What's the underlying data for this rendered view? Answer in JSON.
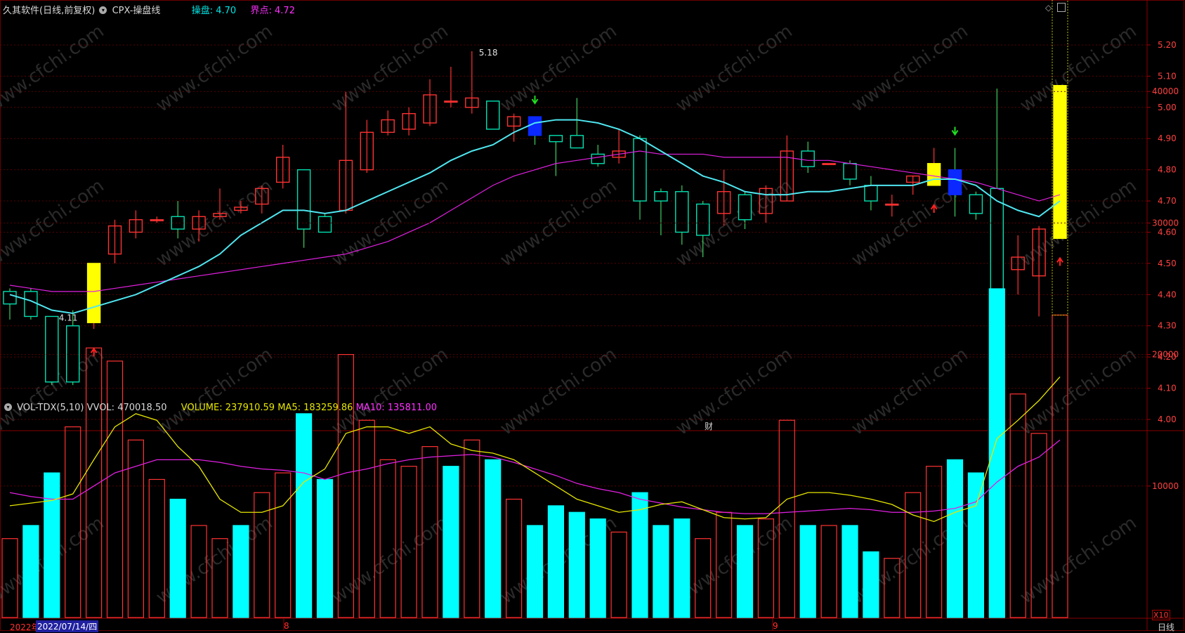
{
  "header": {
    "title": "久其软件(日线,前复权)",
    "indicator": "CPX-操盘线",
    "caopan_label": "操盘:",
    "caopan_value": "4.70",
    "jiedian_label": "界点:",
    "jiedian_value": "4.72"
  },
  "vol_header": {
    "name": "VOL-TDX(5,10)",
    "vvol_label": "VVOL:",
    "vvol_value": "470018.50",
    "volume_label": "VOLUME:",
    "volume_value": "237910.59",
    "ma5_label": "MA5:",
    "ma5_value": "183259.86",
    "ma10_label": "MA10:",
    "ma10_value": "135811.00"
  },
  "watermark": "www.cfchi.com",
  "cai_label": "财",
  "date_labels": {
    "left": "2022年",
    "cursor": "2022/07/14/四",
    "month8": "8",
    "month9": "9"
  },
  "bottom_right": "日线",
  "vol_unit": "X10",
  "colors": {
    "up": "#ff3232",
    "down": "#00ffff",
    "down_body": "#00e0b0",
    "ma_fast": "#4fe6f0",
    "ma_slow": "#e020e0",
    "highlight_up": "#ffff00",
    "highlight_down": "#0a28ff",
    "vol_ma5": "#e6e600",
    "vol_ma10": "#e020e0",
    "signal_up": "#ff2020",
    "signal_down": "#20e020",
    "grid": "#5a0000"
  },
  "chart_data": [
    {
      "type": "candlestick",
      "title": "久其软件(日线,前复权)",
      "y_ticks": [
        4.0,
        4.1,
        4.2,
        4.3,
        4.4,
        4.5,
        4.6,
        4.7,
        4.8,
        4.9,
        5.0,
        5.1,
        5.2
      ],
      "ylim": [
        4.0,
        5.2
      ],
      "annotations": [
        {
          "text": "4.11",
          "index": 2,
          "value": 4.11
        },
        {
          "text": "5.18",
          "index": 22,
          "value": 5.18
        }
      ],
      "candles": [
        {
          "o": 4.41,
          "h": 4.42,
          "l": 4.32,
          "c": 4.37,
          "hl": ""
        },
        {
          "o": 4.41,
          "h": 4.42,
          "l": 4.32,
          "c": 4.33,
          "hl": ""
        },
        {
          "o": 4.33,
          "h": 4.33,
          "l": 4.11,
          "c": 4.12,
          "hl": ""
        },
        {
          "o": 4.3,
          "h": 4.35,
          "l": 4.11,
          "c": 4.12,
          "hl": ""
        },
        {
          "o": 4.31,
          "h": 4.5,
          "l": 4.29,
          "c": 4.5,
          "hl": "up"
        },
        {
          "o": 4.53,
          "h": 4.64,
          "l": 4.5,
          "c": 4.62,
          "hl": ""
        },
        {
          "o": 4.6,
          "h": 4.67,
          "l": 4.58,
          "c": 4.64,
          "hl": ""
        },
        {
          "o": 4.64,
          "h": 4.65,
          "l": 4.63,
          "c": 4.64,
          "hl": ""
        },
        {
          "o": 4.65,
          "h": 4.7,
          "l": 4.58,
          "c": 4.61,
          "hl": ""
        },
        {
          "o": 4.61,
          "h": 4.67,
          "l": 4.57,
          "c": 4.65,
          "hl": ""
        },
        {
          "o": 4.65,
          "h": 4.74,
          "l": 4.64,
          "c": 4.66,
          "hl": ""
        },
        {
          "o": 4.67,
          "h": 4.7,
          "l": 4.66,
          "c": 4.68,
          "hl": ""
        },
        {
          "o": 4.69,
          "h": 4.75,
          "l": 4.66,
          "c": 4.74,
          "hl": ""
        },
        {
          "o": 4.76,
          "h": 4.88,
          "l": 4.74,
          "c": 4.84,
          "hl": ""
        },
        {
          "o": 4.8,
          "h": 4.8,
          "l": 4.55,
          "c": 4.61,
          "hl": ""
        },
        {
          "o": 4.65,
          "h": 4.66,
          "l": 4.6,
          "c": 4.6,
          "hl": ""
        },
        {
          "o": 4.67,
          "h": 5.05,
          "l": 4.66,
          "c": 4.83,
          "hl": ""
        },
        {
          "o": 4.8,
          "h": 4.96,
          "l": 4.79,
          "c": 4.92,
          "hl": ""
        },
        {
          "o": 4.92,
          "h": 4.99,
          "l": 4.91,
          "c": 4.96,
          "hl": ""
        },
        {
          "o": 4.93,
          "h": 5.0,
          "l": 4.91,
          "c": 4.98,
          "hl": ""
        },
        {
          "o": 4.95,
          "h": 5.09,
          "l": 4.94,
          "c": 5.04,
          "hl": ""
        },
        {
          "o": 5.02,
          "h": 5.13,
          "l": 5.0,
          "c": 5.02,
          "hl": ""
        },
        {
          "o": 5.0,
          "h": 5.18,
          "l": 4.98,
          "c": 5.03,
          "hl": ""
        },
        {
          "o": 5.02,
          "h": 5.02,
          "l": 4.93,
          "c": 4.93,
          "hl": ""
        },
        {
          "o": 4.94,
          "h": 4.98,
          "l": 4.89,
          "c": 4.97,
          "hl": ""
        },
        {
          "o": 4.97,
          "h": 4.97,
          "l": 4.88,
          "c": 4.91,
          "hl": "down"
        },
        {
          "o": 4.91,
          "h": 4.91,
          "l": 4.78,
          "c": 4.89,
          "hl": ""
        },
        {
          "o": 4.91,
          "h": 5.03,
          "l": 4.87,
          "c": 4.87,
          "hl": ""
        },
        {
          "o": 4.85,
          "h": 4.88,
          "l": 4.81,
          "c": 4.82,
          "hl": ""
        },
        {
          "o": 4.84,
          "h": 4.93,
          "l": 4.82,
          "c": 4.86,
          "hl": ""
        },
        {
          "o": 4.9,
          "h": 4.91,
          "l": 4.64,
          "c": 4.7,
          "hl": ""
        },
        {
          "o": 4.73,
          "h": 4.74,
          "l": 4.59,
          "c": 4.7,
          "hl": ""
        },
        {
          "o": 4.73,
          "h": 4.75,
          "l": 4.56,
          "c": 4.6,
          "hl": ""
        },
        {
          "o": 4.69,
          "h": 4.7,
          "l": 4.52,
          "c": 4.59,
          "hl": ""
        },
        {
          "o": 4.66,
          "h": 4.8,
          "l": 4.62,
          "c": 4.73,
          "hl": ""
        },
        {
          "o": 4.72,
          "h": 4.73,
          "l": 4.61,
          "c": 4.64,
          "hl": ""
        },
        {
          "o": 4.66,
          "h": 4.75,
          "l": 4.63,
          "c": 4.74,
          "hl": ""
        },
        {
          "o": 4.7,
          "h": 4.91,
          "l": 4.7,
          "c": 4.86,
          "hl": ""
        },
        {
          "o": 4.86,
          "h": 4.89,
          "l": 4.79,
          "c": 4.81,
          "hl": ""
        },
        {
          "o": 4.82,
          "h": 4.82,
          "l": 4.82,
          "c": 4.82,
          "hl": ""
        },
        {
          "o": 4.82,
          "h": 4.83,
          "l": 4.75,
          "c": 4.77,
          "hl": ""
        },
        {
          "o": 4.75,
          "h": 4.78,
          "l": 4.67,
          "c": 4.7,
          "hl": ""
        },
        {
          "o": 4.69,
          "h": 4.72,
          "l": 4.65,
          "c": 4.69,
          "hl": ""
        },
        {
          "o": 4.76,
          "h": 4.78,
          "l": 4.72,
          "c": 4.78,
          "hl": ""
        },
        {
          "o": 4.75,
          "h": 4.87,
          "l": 4.75,
          "c": 4.82,
          "hl": "up"
        },
        {
          "o": 4.8,
          "h": 4.87,
          "l": 4.65,
          "c": 4.72,
          "hl": "down"
        },
        {
          "o": 4.72,
          "h": 4.73,
          "l": 4.64,
          "c": 4.66,
          "hl": ""
        },
        {
          "o": 4.74,
          "h": 5.06,
          "l": 4.39,
          "c": 4.41,
          "hl": ""
        },
        {
          "o": 4.48,
          "h": 4.59,
          "l": 4.4,
          "c": 4.52,
          "hl": ""
        },
        {
          "o": 4.46,
          "h": 4.62,
          "l": 4.33,
          "c": 4.61,
          "hl": ""
        },
        {
          "o": 4.58,
          "h": 5.07,
          "l": 4.58,
          "c": 5.07,
          "hl": "up"
        }
      ],
      "ma_fast": [
        4.4,
        4.38,
        4.35,
        4.34,
        4.36,
        4.38,
        4.4,
        4.43,
        4.46,
        4.49,
        4.53,
        4.59,
        4.63,
        4.67,
        4.67,
        4.66,
        4.67,
        4.7,
        4.73,
        4.76,
        4.79,
        4.83,
        4.86,
        4.88,
        4.92,
        4.95,
        4.96,
        4.96,
        4.95,
        4.93,
        4.9,
        4.86,
        4.82,
        4.78,
        4.76,
        4.73,
        4.72,
        4.72,
        4.73,
        4.73,
        4.74,
        4.75,
        4.75,
        4.75,
        4.77,
        4.77,
        4.75,
        4.7,
        4.67,
        4.65,
        4.7
      ],
      "ma_slow": [
        4.43,
        4.42,
        4.41,
        4.41,
        4.41,
        4.42,
        4.43,
        4.44,
        4.45,
        4.46,
        4.47,
        4.48,
        4.49,
        4.5,
        4.51,
        4.52,
        4.53,
        4.55,
        4.57,
        4.6,
        4.63,
        4.67,
        4.71,
        4.75,
        4.78,
        4.8,
        4.82,
        4.83,
        4.84,
        4.85,
        4.86,
        4.85,
        4.85,
        4.85,
        4.84,
        4.84,
        4.84,
        4.84,
        4.83,
        4.83,
        4.82,
        4.81,
        4.8,
        4.79,
        4.78,
        4.77,
        4.76,
        4.74,
        4.72,
        4.7,
        4.72
      ],
      "signals": [
        {
          "index": 4,
          "type": "up"
        },
        {
          "index": 25,
          "type": "down"
        },
        {
          "index": 44,
          "type": "up"
        },
        {
          "index": 45,
          "type": "down"
        },
        {
          "index": 50,
          "type": "up"
        }
      ],
      "wick_labels": [
        {
          "index": 2,
          "text": "4.11"
        },
        {
          "index": 22,
          "text": "5.18"
        }
      ]
    },
    {
      "type": "bar",
      "title": "VOL-TDX(5,10)",
      "y_ticks": [
        10000,
        20000,
        30000,
        40000
      ],
      "ylim": [
        0,
        48500
      ],
      "volumes": [
        6000,
        7000,
        11000,
        14500,
        20500,
        19500,
        13500,
        10500,
        9000,
        7000,
        6000,
        7000,
        9500,
        11000,
        15500,
        10500,
        20000,
        15000,
        12000,
        11500,
        13000,
        11500,
        13500,
        12000,
        9000,
        7000,
        8500,
        8000,
        7500,
        6500,
        9500,
        7000,
        7500,
        6000,
        8000,
        7000,
        7500,
        15000,
        7000,
        7000,
        7000,
        5000,
        4500,
        9500,
        11500,
        12000,
        11000,
        25000,
        17000,
        14000,
        23000
      ],
      "vol_up_pattern": [
        1,
        0,
        0,
        1,
        1,
        1,
        1,
        1,
        0,
        1,
        1,
        0,
        1,
        1,
        0,
        0,
        1,
        1,
        1,
        1,
        1,
        0,
        1,
        0,
        1,
        0,
        0,
        0,
        0,
        1,
        0,
        0,
        0,
        1,
        1,
        0,
        1,
        1,
        0,
        1,
        0,
        0,
        1,
        1,
        1,
        0,
        0,
        0,
        1,
        1,
        1
      ],
      "vvol_total": 47000,
      "ma5": [
        8500,
        8700,
        8900,
        9400,
        12000,
        14500,
        15500,
        15000,
        13000,
        11500,
        9000,
        8000,
        8000,
        8500,
        10300,
        11300,
        14000,
        14500,
        14500,
        14000,
        14500,
        13200,
        12700,
        12500,
        12000,
        11000,
        10000,
        9000,
        8500,
        8000,
        8200,
        8600,
        8800,
        8200,
        7600,
        7500,
        7600,
        9000,
        9500,
        9500,
        9300,
        9000,
        8600,
        7800,
        7300,
        8000,
        8500,
        13600,
        15000,
        16500,
        18300
      ],
      "ma10": [
        9500,
        9200,
        9000,
        9000,
        10000,
        11000,
        11500,
        12000,
        12000,
        12000,
        11800,
        11500,
        11300,
        11200,
        11000,
        10500,
        11000,
        11300,
        11700,
        12000,
        12200,
        12300,
        12400,
        12200,
        11800,
        11300,
        10800,
        10200,
        9800,
        9500,
        9000,
        8700,
        8400,
        8200,
        8000,
        7900,
        7900,
        8000,
        8100,
        8200,
        8300,
        8200,
        8000,
        8000,
        8100,
        8300,
        8800,
        10300,
        11500,
        12200,
        13500
      ]
    }
  ]
}
